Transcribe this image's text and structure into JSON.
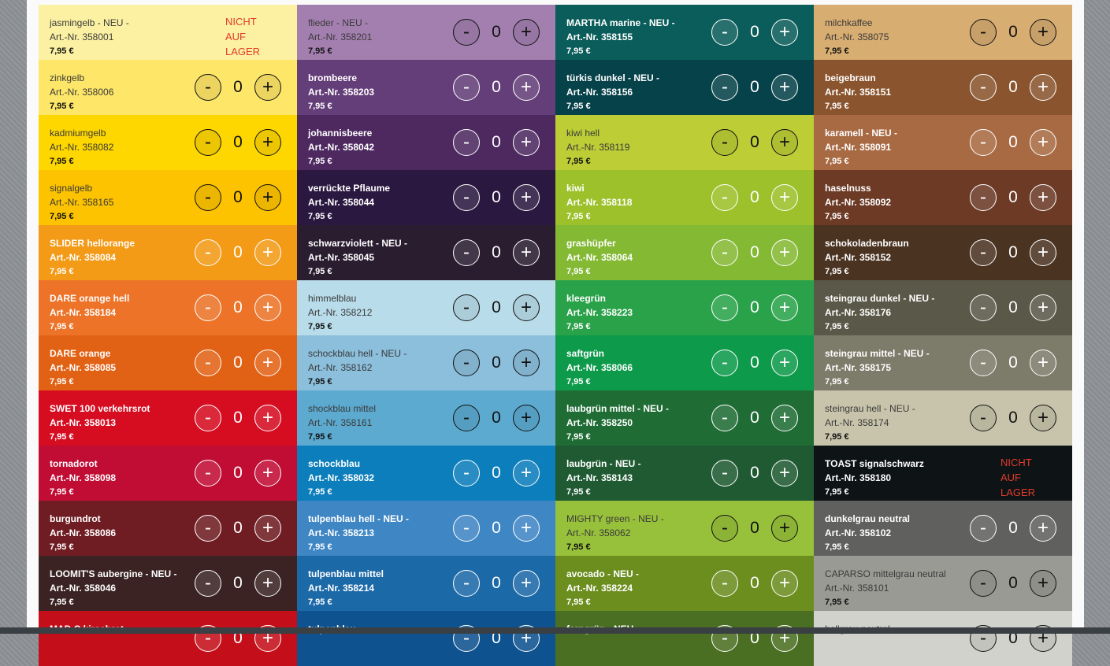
{
  "buttons": {
    "minus": "-",
    "plus": "+"
  },
  "out_of_stock_lines": [
    "NICHT",
    "AUF",
    "LAGER"
  ],
  "products": [
    {
      "name": "jasmingelb - NEU -",
      "art": "Art.-Nr. 358001",
      "price": "7,95 €",
      "qty": "",
      "bg": "#fcf1a2",
      "theme": "light",
      "out_of_stock": true
    },
    {
      "name": "flieder - NEU -",
      "art": "Art.-Nr. 358201",
      "price": "7,95 €",
      "qty": "0",
      "bg": "#a37fb0",
      "theme": "light"
    },
    {
      "name": "MARTHA marine - NEU -",
      "art": "Art.-Nr. 358155",
      "price": "7,95 €",
      "qty": "0",
      "bg": "#0a5d5a",
      "theme": "dark"
    },
    {
      "name": "milchkaffee",
      "art": "Art.-Nr. 358075",
      "price": "7,95 €",
      "qty": "0",
      "bg": "#d7ad72",
      "theme": "light"
    },
    {
      "name": "zinkgelb",
      "art": "Art.-Nr. 358006",
      "price": "7,95 €",
      "qty": "0",
      "bg": "#fde668",
      "theme": "light"
    },
    {
      "name": "brombeere",
      "art": "Art.-Nr. 358203",
      "price": "7,95 €",
      "qty": "0",
      "bg": "#643e78",
      "theme": "dark"
    },
    {
      "name": "türkis dunkel - NEU -",
      "art": "Art.-Nr. 358156",
      "price": "7,95 €",
      "qty": "0",
      "bg": "#06424a",
      "theme": "dark"
    },
    {
      "name": "beigebraun",
      "art": "Art.-Nr. 358151",
      "price": "7,95 €",
      "qty": "0",
      "bg": "#8a552e",
      "theme": "dark"
    },
    {
      "name": "kadmiumgelb",
      "art": "Art.-Nr. 358082",
      "price": "7,95 €",
      "qty": "0",
      "bg": "#fed600",
      "theme": "light"
    },
    {
      "name": "johannisbeere",
      "art": "Art.-Nr. 358042",
      "price": "7,95 €",
      "qty": "0",
      "bg": "#4d2960",
      "theme": "dark"
    },
    {
      "name": "kiwi hell",
      "art": "Art.-Nr. 358119",
      "price": "7,95 €",
      "qty": "0",
      "bg": "#bccd36",
      "theme": "light"
    },
    {
      "name": "karamell - NEU -",
      "art": "Art.-Nr. 358091",
      "price": "7,95 €",
      "qty": "0",
      "bg": "#a86a43",
      "theme": "dark"
    },
    {
      "name": "signalgelb",
      "art": "Art.-Nr. 358165",
      "price": "7,95 €",
      "qty": "0",
      "bg": "#fdc300",
      "theme": "light"
    },
    {
      "name": "verrückte Pflaume",
      "art": "Art.-Nr. 358044",
      "price": "7,95 €",
      "qty": "0",
      "bg": "#2b1840",
      "theme": "dark"
    },
    {
      "name": "kiwi",
      "art": "Art.-Nr. 358118",
      "price": "7,95 €",
      "qty": "0",
      "bg": "#9cc12b",
      "theme": "dark"
    },
    {
      "name": "haselnuss",
      "art": "Art.-Nr. 358092",
      "price": "7,95 €",
      "qty": "0",
      "bg": "#6c3a25",
      "theme": "dark"
    },
    {
      "name": "SLIDER hellorange",
      "art": "Art.-Nr. 358084",
      "price": "7,95 €",
      "qty": "0",
      "bg": "#f39a16",
      "theme": "dark"
    },
    {
      "name": "schwarzviolett - NEU -",
      "art": "Art.-Nr. 358045",
      "price": "7,95 €",
      "qty": "0",
      "bg": "#2a1d30",
      "theme": "dark"
    },
    {
      "name": "grashüpfer",
      "art": "Art.-Nr. 358064",
      "price": "7,95 €",
      "qty": "0",
      "bg": "#84b934",
      "theme": "dark"
    },
    {
      "name": "schokoladenbraun",
      "art": "Art.-Nr. 358152",
      "price": "7,95 €",
      "qty": "0",
      "bg": "#4b3322",
      "theme": "dark"
    },
    {
      "name": "DARE orange hell",
      "art": "Art.-Nr. 358184",
      "price": "7,95 €",
      "qty": "0",
      "bg": "#ec7328",
      "theme": "dark"
    },
    {
      "name": "himmelblau",
      "art": "Art.-Nr. 358212",
      "price": "7,95 €",
      "qty": "0",
      "bg": "#b9dcea",
      "theme": "light"
    },
    {
      "name": "kleegrün",
      "art": "Art.-Nr. 358223",
      "price": "7,95 €",
      "qty": "0",
      "bg": "#2aa24a",
      "theme": "dark"
    },
    {
      "name": "steingrau dunkel - NEU -",
      "art": "Art.-Nr. 358176",
      "price": "7,95 €",
      "qty": "0",
      "bg": "#5a5848",
      "theme": "dark"
    },
    {
      "name": "DARE orange",
      "art": "Art.-Nr. 358085",
      "price": "7,95 €",
      "qty": "0",
      "bg": "#e26215",
      "theme": "dark"
    },
    {
      "name": "schockblau hell - NEU -",
      "art": "Art.-Nr. 358162",
      "price": "7,95 €",
      "qty": "0",
      "bg": "#8cbfdc",
      "theme": "light"
    },
    {
      "name": "saftgrün",
      "art": "Art.-Nr. 358066",
      "price": "7,95 €",
      "qty": "0",
      "bg": "#0d9a4a",
      "theme": "dark"
    },
    {
      "name": "steingrau mittel - NEU -",
      "art": "Art.-Nr. 358175",
      "price": "7,95 €",
      "qty": "0",
      "bg": "#7d7b6a",
      "theme": "dark"
    },
    {
      "name": "SWET 100 verkehrsrot",
      "art": "Art.-Nr. 358013",
      "price": "7,95 €",
      "qty": "0",
      "bg": "#d60c21",
      "theme": "dark"
    },
    {
      "name": "shockblau mittel",
      "art": "Art.-Nr. 358161",
      "price": "7,95 €",
      "qty": "0",
      "bg": "#5daad0",
      "theme": "light"
    },
    {
      "name": "laubgrün mittel - NEU -",
      "art": "Art.-Nr. 358250",
      "price": "7,95 €",
      "qty": "0",
      "bg": "#1f6d35",
      "theme": "dark"
    },
    {
      "name": "steingrau hell - NEU -",
      "art": "Art.-Nr. 358174",
      "price": "7,95 €",
      "qty": "0",
      "bg": "#c8c4ab",
      "theme": "light"
    },
    {
      "name": "tornadorot",
      "art": "Art.-Nr. 358098",
      "price": "7,95 €",
      "qty": "0",
      "bg": "#c10c34",
      "theme": "dark"
    },
    {
      "name": "schockblau",
      "art": "Art.-Nr. 358032",
      "price": "7,95 €",
      "qty": "0",
      "bg": "#0c7ebb",
      "theme": "dark"
    },
    {
      "name": "laubgrün - NEU -",
      "art": "Art.-Nr. 358143",
      "price": "7,95 €",
      "qty": "0",
      "bg": "#1f5a33",
      "theme": "dark"
    },
    {
      "name": "TOAST signalschwarz",
      "art": "Art.-Nr. 358180",
      "price": "7,95 €",
      "qty": "",
      "bg": "#0e1316",
      "theme": "dark",
      "out_of_stock": true
    },
    {
      "name": "burgundrot",
      "art": "Art.-Nr. 358086",
      "price": "7,95 €",
      "qty": "0",
      "bg": "#6f1d23",
      "theme": "dark"
    },
    {
      "name": "tulpenblau hell - NEU -",
      "art": "Art.-Nr. 358213",
      "price": "7,95 €",
      "qty": "0",
      "bg": "#3f86c4",
      "theme": "dark"
    },
    {
      "name": "MIGHTY green - NEU -",
      "art": "Art.-Nr. 358062",
      "price": "7,95 €",
      "qty": "0",
      "bg": "#98c13b",
      "theme": "light"
    },
    {
      "name": "dunkelgrau neutral",
      "art": "Art.-Nr. 358102",
      "price": "7,95 €",
      "qty": "0",
      "bg": "#60605e",
      "theme": "dark"
    },
    {
      "name": "LOOMIT'S aubergine - NEU -",
      "art": "Art.-Nr. 358046",
      "price": "7,95 €",
      "qty": "0",
      "bg": "#3b2323",
      "theme": "dark"
    },
    {
      "name": "tulpenblau mittel",
      "art": "Art.-Nr. 358214",
      "price": "7,95 €",
      "qty": "0",
      "bg": "#1c69a8",
      "theme": "dark"
    },
    {
      "name": "avocado - NEU -",
      "art": "Art.-Nr. 358224",
      "price": "7,95 €",
      "qty": "0",
      "bg": "#6c8e1f",
      "theme": "dark"
    },
    {
      "name": "CAPARSO mittelgrau neutral",
      "art": "Art.-Nr. 358101",
      "price": "7,95 €",
      "qty": "0",
      "bg": "#9a9a95",
      "theme": "light"
    },
    {
      "name": "MAD C kirschrot",
      "art": "",
      "price": "",
      "qty": "0",
      "bg": "#c40f1a",
      "theme": "dark"
    },
    {
      "name": "tulpenblau",
      "art": "",
      "price": "",
      "qty": "0",
      "bg": "#0e5390",
      "theme": "dark"
    },
    {
      "name": "farngrün - NEU -",
      "art": "",
      "price": "",
      "qty": "0",
      "bg": "#4a6f22",
      "theme": "dark"
    },
    {
      "name": "hellgrau neutral",
      "art": "",
      "price": "",
      "qty": "0",
      "bg": "#d2d2cc",
      "theme": "light"
    }
  ]
}
